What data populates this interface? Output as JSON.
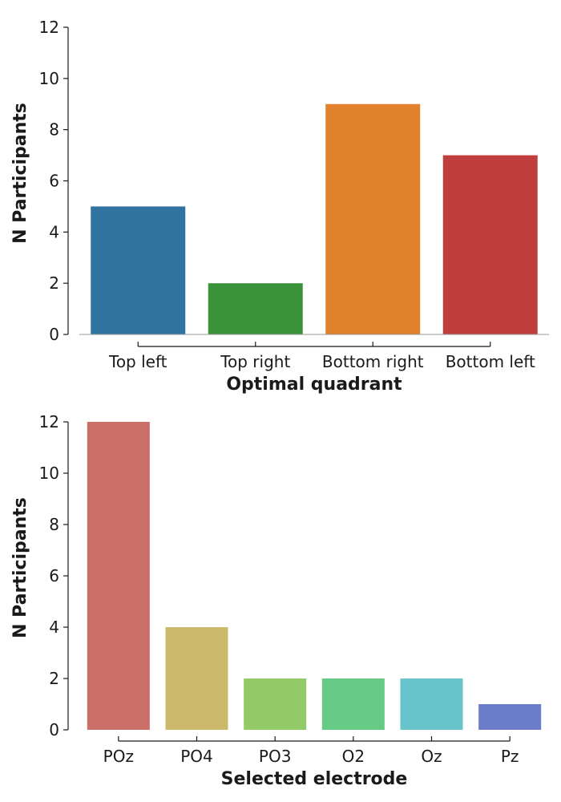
{
  "chart_data": [
    {
      "type": "bar",
      "categories": [
        "Top left",
        "Top right",
        "Bottom right",
        "Bottom left"
      ],
      "values": [
        5,
        2,
        9,
        7
      ],
      "colors": [
        "#3274a1",
        "#3a923a",
        "#e1812c",
        "#c03d3e"
      ],
      "xlabel": "Optimal quadrant",
      "ylabel": "N Participants",
      "ylim": [
        0,
        12
      ],
      "yticks": [
        "0",
        "2",
        "4",
        "6",
        "8",
        "10",
        "12"
      ],
      "grid": false
    },
    {
      "type": "bar",
      "categories": [
        "POz",
        "PO4",
        "PO3",
        "O2",
        "Oz",
        "Pz"
      ],
      "values": [
        12,
        4,
        2,
        2,
        2,
        1
      ],
      "colors": [
        "#cc6e68",
        "#cbb86b",
        "#92ca67",
        "#67cb85",
        "#67c4cb",
        "#6b7ccb"
      ],
      "xlabel": "Selected electrode",
      "ylabel": "N Participants",
      "ylim": [
        0,
        12
      ],
      "yticks": [
        "0",
        "2",
        "4",
        "6",
        "8",
        "10",
        "12"
      ],
      "grid": false
    }
  ]
}
